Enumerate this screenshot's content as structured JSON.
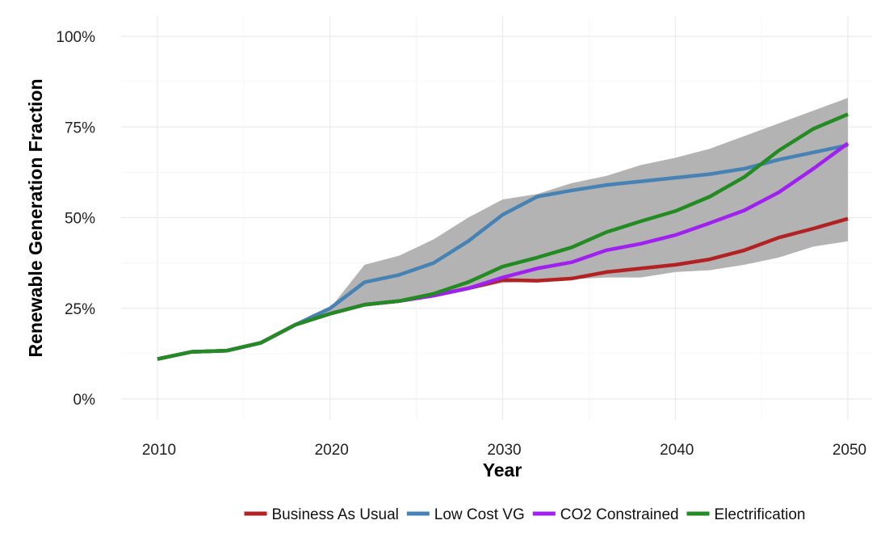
{
  "chart_data": {
    "type": "line",
    "xlabel": "Year",
    "ylabel": "Renewable Generation Fraction",
    "xlim": [
      2010,
      2050
    ],
    "ylim": [
      0,
      1
    ],
    "x_ticks": [
      {
        "value": 2010,
        "label": "2010"
      },
      {
        "value": 2020,
        "label": "2020"
      },
      {
        "value": 2030,
        "label": "2030"
      },
      {
        "value": 2040,
        "label": "2040"
      },
      {
        "value": 2050,
        "label": "2050"
      }
    ],
    "y_ticks": [
      {
        "value": 0,
        "label": "0%"
      },
      {
        "value": 0.25,
        "label": "25%"
      },
      {
        "value": 0.5,
        "label": "50%"
      },
      {
        "value": 0.75,
        "label": "75%"
      },
      {
        "value": 1.0,
        "label": "100%"
      }
    ],
    "grid": true,
    "legend_position": "bottom",
    "x": [
      2010,
      2012,
      2014,
      2016,
      2018,
      2020,
      2022,
      2024,
      2026,
      2028,
      2030,
      2032,
      2034,
      2036,
      2038,
      2040,
      2042,
      2044,
      2046,
      2048,
      2050
    ],
    "range_band": {
      "color": "#b3b3b3",
      "upper": [
        0.11,
        0.13,
        0.133,
        0.155,
        0.205,
        0.25,
        0.37,
        0.395,
        0.44,
        0.5,
        0.55,
        0.565,
        0.595,
        0.615,
        0.645,
        0.665,
        0.69,
        0.725,
        0.76,
        0.795,
        0.83
      ],
      "lower": [
        0.11,
        0.13,
        0.133,
        0.155,
        0.205,
        0.235,
        0.255,
        0.265,
        0.28,
        0.3,
        0.32,
        0.325,
        0.33,
        0.335,
        0.335,
        0.35,
        0.355,
        0.37,
        0.39,
        0.42,
        0.435
      ]
    },
    "series": [
      {
        "name": "Business As Usual",
        "color": "#b22222",
        "values": [
          0.11,
          0.13,
          0.133,
          0.155,
          0.205,
          0.235,
          0.26,
          0.27,
          0.285,
          0.305,
          0.328,
          0.326,
          0.332,
          0.35,
          0.36,
          0.37,
          0.385,
          0.41,
          0.445,
          0.47,
          0.497
        ]
      },
      {
        "name": "Low Cost VG",
        "color": "#4682b4",
        "values": [
          0.11,
          0.13,
          0.133,
          0.155,
          0.205,
          0.25,
          0.322,
          0.342,
          0.375,
          0.435,
          0.508,
          0.558,
          0.575,
          0.59,
          0.6,
          0.61,
          0.62,
          0.635,
          0.66,
          0.68,
          0.7
        ]
      },
      {
        "name": "CO2 Constrained",
        "color": "#a020f0",
        "values": [
          0.11,
          0.13,
          0.133,
          0.155,
          0.205,
          0.235,
          0.26,
          0.27,
          0.285,
          0.305,
          0.335,
          0.36,
          0.377,
          0.41,
          0.428,
          0.452,
          0.485,
          0.52,
          0.57,
          0.635,
          0.705
        ]
      },
      {
        "name": "Electrification",
        "color": "#228b22",
        "values": [
          0.11,
          0.13,
          0.133,
          0.155,
          0.205,
          0.235,
          0.26,
          0.27,
          0.29,
          0.322,
          0.365,
          0.39,
          0.418,
          0.46,
          0.49,
          0.518,
          0.558,
          0.612,
          0.685,
          0.745,
          0.785
        ]
      }
    ]
  }
}
